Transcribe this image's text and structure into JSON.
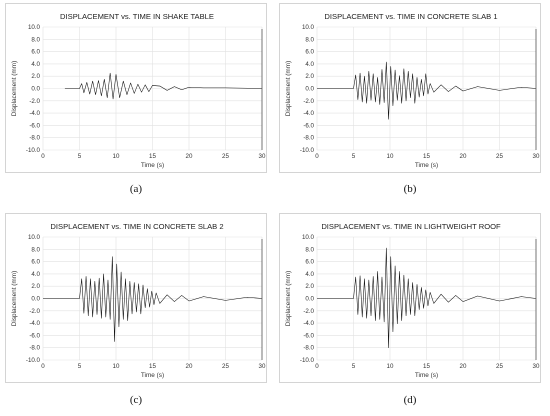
{
  "chart_data": [
    {
      "type": "line",
      "caption": "(a)",
      "title": "DISPLACEMENT vs. TIME IN SHAKE TABLE",
      "xlabel": "Time (s)",
      "ylabel": "Displacement (mm)",
      "xlim": [
        0,
        30
      ],
      "ylim": [
        -10,
        10
      ],
      "xticks": [
        "0",
        "5",
        "10",
        "15",
        "20",
        "25",
        "30"
      ],
      "yticks": [
        "10.0",
        "8.0",
        "6.0",
        "4.0",
        "2.0",
        "0.0",
        "-2.0",
        "-4.0",
        "-6.0",
        "-8.0",
        "-10.0"
      ],
      "grid": true,
      "series": [
        {
          "x": [
            3,
            5,
            5.3,
            5.6,
            6,
            6.4,
            6.8,
            7.2,
            7.6,
            8,
            8.4,
            8.8,
            9.2,
            9.6,
            10,
            10.5,
            11,
            11.5,
            12,
            12.5,
            13,
            13.5,
            14,
            14.5,
            15,
            16,
            17,
            18,
            19,
            20,
            22,
            25,
            30
          ],
          "y": [
            0,
            0,
            0.8,
            -0.7,
            1,
            -0.9,
            1.2,
            -1,
            1.3,
            -1.2,
            1.5,
            -1.5,
            2.5,
            -1.7,
            2.3,
            -1.5,
            1.2,
            -1,
            0.9,
            -0.8,
            0.7,
            -0.6,
            0.6,
            -0.5,
            0.5,
            0.4,
            -0.3,
            0.3,
            -0.2,
            0.2,
            0.1,
            0.1,
            0
          ]
        }
      ]
    },
    {
      "type": "line",
      "caption": "(b)",
      "title": "DISPLACEMENT vs. TIME IN CONCRETE SLAB 1",
      "xlabel": "Time (s)",
      "ylabel": "Displacement (mm)",
      "xlim": [
        0,
        30
      ],
      "ylim": [
        -10,
        10
      ],
      "xticks": [
        "0",
        "5",
        "10",
        "15",
        "20",
        "25",
        "30"
      ],
      "yticks": [
        "10.0",
        "8.0",
        "6.0",
        "4.0",
        "2.0",
        "0.0",
        "-2.0",
        "-4.0",
        "-6.0",
        "-8.0",
        "-10.0"
      ],
      "grid": true,
      "series": [
        {
          "x": [
            0,
            5,
            5.3,
            5.6,
            5.9,
            6.2,
            6.5,
            6.8,
            7.1,
            7.4,
            7.7,
            8,
            8.3,
            8.6,
            8.9,
            9.2,
            9.5,
            9.8,
            10.1,
            10.4,
            10.7,
            11,
            11.3,
            11.6,
            11.9,
            12.2,
            12.5,
            12.8,
            13.1,
            13.4,
            13.7,
            14,
            14.3,
            14.6,
            14.9,
            15.2,
            15.5,
            16,
            17,
            18,
            19,
            20,
            22,
            25,
            28,
            30
          ],
          "y": [
            0,
            0,
            2.2,
            -1.8,
            2.5,
            -2.2,
            2,
            -2.4,
            2.8,
            -1.9,
            2.4,
            -2.2,
            1.8,
            -2.6,
            3.1,
            -2.3,
            4.3,
            -5,
            3.6,
            -2.8,
            3,
            -1.9,
            2.1,
            -2.4,
            3.2,
            -2,
            2.8,
            -1.5,
            2.4,
            -2.4,
            1.8,
            -1.4,
            1.5,
            -1.2,
            2.4,
            -0.9,
            0.8,
            -0.6,
            0.6,
            -0.5,
            0.4,
            -0.4,
            0.3,
            -0.3,
            0.2,
            0
          ]
        }
      ]
    },
    {
      "type": "line",
      "caption": "(c)",
      "title": "DISPLACEMENT vs. TIME IN CONCRETE SLAB 2",
      "xlabel": "Time (s)",
      "ylabel": "Displacement (mm)",
      "xlim": [
        0,
        30
      ],
      "ylim": [
        -10,
        10
      ],
      "xticks": [
        "0",
        "5",
        "10",
        "15",
        "20",
        "25",
        "30"
      ],
      "yticks": [
        "10.0",
        "8.0",
        "6.0",
        "4.0",
        "2.0",
        "0.0",
        "-2.0",
        "-4.0",
        "-6.0",
        "-8.0",
        "-10.0"
      ],
      "grid": true,
      "series": [
        {
          "x": [
            0,
            5,
            5.3,
            5.6,
            5.9,
            6.2,
            6.5,
            6.8,
            7.1,
            7.4,
            7.7,
            8,
            8.3,
            8.6,
            8.9,
            9.2,
            9.5,
            9.8,
            10.1,
            10.4,
            10.7,
            11,
            11.3,
            11.6,
            11.9,
            12.2,
            12.5,
            12.8,
            13.1,
            13.4,
            13.7,
            14,
            14.3,
            14.6,
            14.9,
            15.2,
            15.5,
            16,
            17,
            18,
            19,
            20,
            22,
            25,
            28,
            30
          ],
          "y": [
            0,
            0,
            3.2,
            -2.4,
            3.6,
            -2.8,
            3.2,
            -3,
            2.8,
            -2.6,
            3.3,
            -3.2,
            4,
            -3,
            3,
            -3.4,
            6.8,
            -7,
            5.6,
            -4.6,
            4.3,
            -3.4,
            3.2,
            -3.6,
            2.8,
            -2.5,
            2.6,
            -2.2,
            2.4,
            -2.5,
            2.2,
            -1.5,
            1.6,
            -1.4,
            1.2,
            -1,
            0.9,
            -0.8,
            0.6,
            -0.5,
            0.5,
            -0.4,
            0.3,
            -0.3,
            0.2,
            0
          ]
        }
      ]
    },
    {
      "type": "line",
      "caption": "(d)",
      "title": "DISPLACEMENT vs. TIME IN LIGHTWEIGHT ROOF",
      "xlabel": "Time (s)",
      "ylabel": "Displacement (mm)",
      "xlim": [
        0,
        30
      ],
      "ylim": [
        -10,
        10
      ],
      "xticks": [
        "0",
        "5",
        "10",
        "15",
        "20",
        "25",
        "30"
      ],
      "yticks": [
        "10.0",
        "8.0",
        "6.0",
        "4.0",
        "2.0",
        "0.0",
        "-2.0",
        "-4.0",
        "-6.0",
        "-8.0",
        "-10.0"
      ],
      "grid": true,
      "series": [
        {
          "x": [
            0,
            5,
            5.3,
            5.6,
            5.9,
            6.2,
            6.5,
            6.8,
            7.1,
            7.4,
            7.7,
            8,
            8.3,
            8.6,
            8.9,
            9.2,
            9.5,
            9.8,
            10.1,
            10.4,
            10.7,
            11,
            11.3,
            11.6,
            11.9,
            12.2,
            12.5,
            12.8,
            13.1,
            13.4,
            13.7,
            14,
            14.3,
            14.6,
            14.9,
            15.2,
            15.5,
            16,
            17,
            18,
            19,
            20,
            22,
            25,
            28,
            30
          ],
          "y": [
            0,
            0,
            3.5,
            -2.6,
            3.7,
            -3,
            3.2,
            -3.2,
            3,
            -2.8,
            3.6,
            -3.6,
            4.4,
            -3.4,
            3.5,
            -3.8,
            8.2,
            -8,
            6.8,
            -5.4,
            5.3,
            -4.1,
            4.4,
            -3.6,
            3.8,
            -2.8,
            3.2,
            -2.6,
            2.6,
            -2.8,
            2.3,
            -1.8,
            1.8,
            -1.6,
            1.4,
            -1.2,
            1,
            -0.8,
            0.7,
            -0.6,
            0.5,
            -0.5,
            0.4,
            -0.4,
            0.3,
            0
          ]
        }
      ]
    }
  ]
}
